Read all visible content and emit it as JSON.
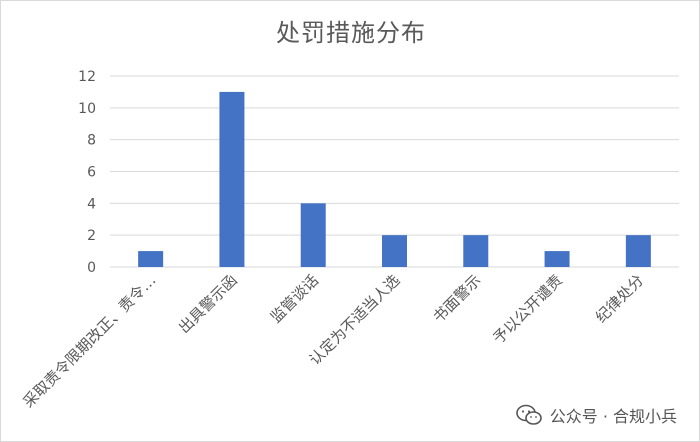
{
  "chart_data": {
    "type": "bar",
    "title": "处罚措施分布",
    "categories": [
      "采取责令限期改正、责令…",
      "出具警示函",
      "监管谈话",
      "认定为不适当人选",
      "书面警示",
      "予以公开谴责",
      "纪律处分"
    ],
    "values": [
      1,
      11,
      4,
      2,
      2,
      1,
      2
    ],
    "ylim": [
      0,
      12
    ],
    "yticks": [
      0,
      2,
      4,
      6,
      8,
      10,
      12
    ],
    "grid": true,
    "bar_color": "#4472C4"
  },
  "watermark": {
    "text": "公众号 · 合规小兵",
    "icon": "wechat-icon"
  }
}
